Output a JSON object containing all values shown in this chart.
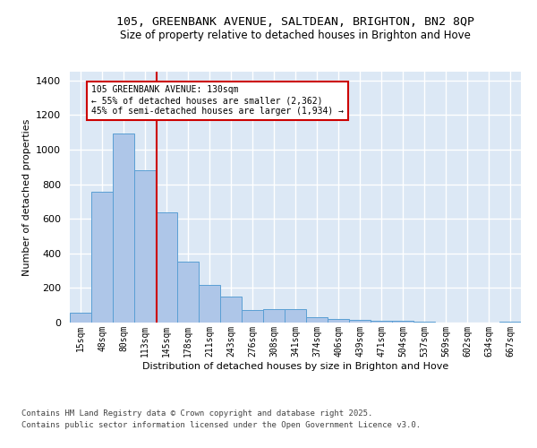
{
  "title_line1": "105, GREENBANK AVENUE, SALTDEAN, BRIGHTON, BN2 8QP",
  "title_line2": "Size of property relative to detached houses in Brighton and Hove",
  "xlabel": "Distribution of detached houses by size in Brighton and Hove",
  "ylabel": "Number of detached properties",
  "categories": [
    "15sqm",
    "48sqm",
    "80sqm",
    "113sqm",
    "145sqm",
    "178sqm",
    "211sqm",
    "243sqm",
    "276sqm",
    "308sqm",
    "341sqm",
    "374sqm",
    "406sqm",
    "439sqm",
    "471sqm",
    "504sqm",
    "537sqm",
    "569sqm",
    "602sqm",
    "634sqm",
    "667sqm"
  ],
  "values": [
    55,
    755,
    1095,
    880,
    635,
    350,
    220,
    150,
    75,
    80,
    80,
    30,
    22,
    18,
    12,
    8,
    4,
    2,
    1,
    0,
    5
  ],
  "bar_color": "#aec6e8",
  "bar_edge_color": "#5a9fd4",
  "vline_color": "#cc0000",
  "annotation_text": "105 GREENBANK AVENUE: 130sqm\n← 55% of detached houses are smaller (2,362)\n45% of semi-detached houses are larger (1,934) →",
  "annotation_box_color": "#cc0000",
  "annotation_text_color": "#000000",
  "ylim": [
    0,
    1450
  ],
  "yticks": [
    0,
    200,
    400,
    600,
    800,
    1000,
    1200,
    1400
  ],
  "background_color": "#dce8f5",
  "grid_color": "#ffffff",
  "fig_background": "#ffffff",
  "footer_line1": "Contains HM Land Registry data © Crown copyright and database right 2025.",
  "footer_line2": "Contains public sector information licensed under the Open Government Licence v3.0."
}
